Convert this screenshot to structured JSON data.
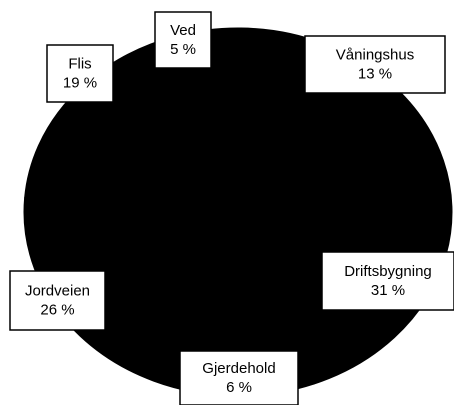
{
  "chart_data": {
    "type": "pie",
    "categories": [
      "Ved",
      "Våningshus",
      "Driftsbygning",
      "Gjerdehold",
      "Jordveien",
      "Flis"
    ],
    "values": [
      5,
      13,
      31,
      6,
      26,
      19
    ],
    "value_labels": [
      "5 %",
      "13 %",
      "31 %",
      "6 %",
      "26 %",
      "19 %"
    ],
    "color": "#000000"
  }
}
